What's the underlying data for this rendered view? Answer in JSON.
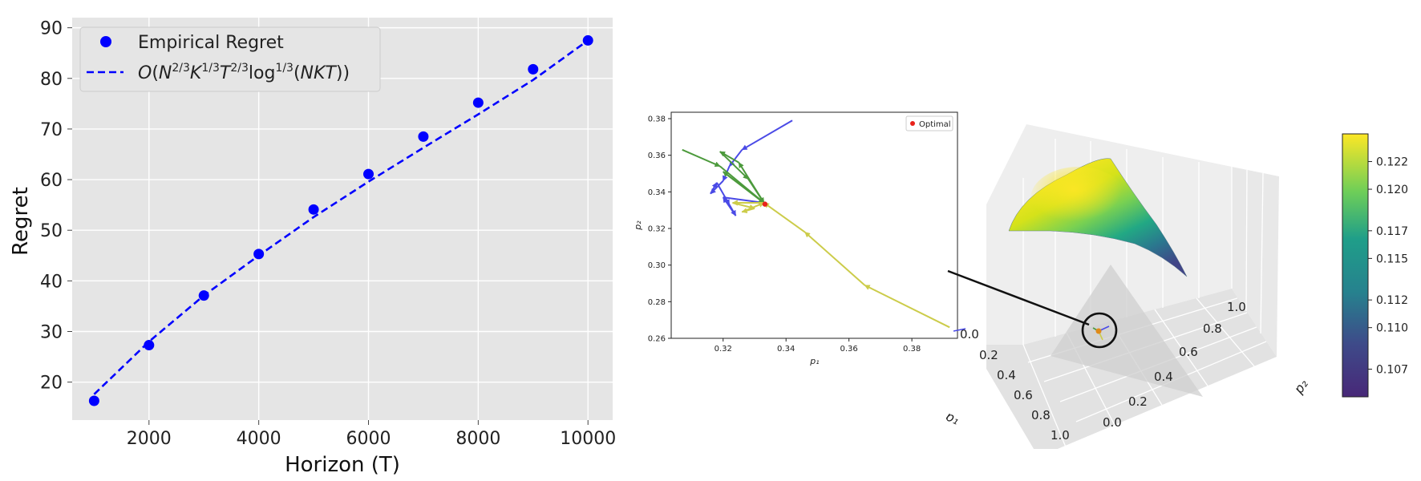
{
  "panels": {
    "left": {
      "xlabel": "Horizon (T)",
      "ylabel": "Regret"
    },
    "inset": {
      "xlabel": "p₁",
      "ylabel": "p₂"
    },
    "surface3d": {
      "xlabel": "p₁",
      "ylabel": "p₂"
    },
    "colorbar": {
      "ticks": [
        "0.107",
        "0.110",
        "0.112",
        "0.115",
        "0.117",
        "0.120",
        "0.122"
      ]
    }
  },
  "colors": {
    "plot_bg": "#e5e5e5",
    "blue": "#0000ff",
    "traj_blue": "#4a4ae6",
    "traj_green": "#4c9a3c",
    "traj_yellow": "#cccc4a",
    "optimal": "#e8221a"
  },
  "chart_data": [
    {
      "type": "scatter",
      "title": "",
      "xlabel": "Horizon (T)",
      "ylabel": "Regret",
      "xlim": [
        600,
        10450
      ],
      "ylim": [
        12.5,
        92
      ],
      "xticks": [
        2000,
        4000,
        6000,
        8000,
        10000
      ],
      "yticks": [
        20,
        30,
        40,
        50,
        60,
        70,
        80,
        90
      ],
      "grid": true,
      "legend_position": "top-left",
      "series": [
        {
          "name": "Empirical Regret",
          "style": "markers",
          "x": [
            1000,
            2000,
            3000,
            4000,
            5000,
            6000,
            7000,
            8000,
            9000,
            10000
          ],
          "y": [
            16.3,
            27.3,
            37.1,
            45.3,
            54.1,
            61.1,
            68.5,
            75.2,
            81.8,
            87.5
          ]
        },
        {
          "name": "O(N^{2/3} K^{1/3} T^{2/3} log^{1/3}(NKT))",
          "style": "dashed-line",
          "x": [
            1000,
            2000,
            3000,
            4000,
            5000,
            6000,
            7000,
            8000,
            9000,
            10000
          ],
          "y": [
            17.6,
            28.0,
            37.1,
            45.0,
            52.6,
            59.6,
            66.3,
            72.9,
            79.7,
            87.5
          ]
        }
      ]
    },
    {
      "type": "line",
      "title": "",
      "xlabel": "p₁",
      "ylabel": "p₂",
      "xlim": [
        0.3035,
        0.3945
      ],
      "ylim": [
        0.26,
        0.3835
      ],
      "xticks": [
        "0.32",
        "0.34",
        "0.36",
        "0.38"
      ],
      "yticks": [
        "0.26",
        "0.28",
        "0.30",
        "0.32",
        "0.34",
        "0.36",
        "0.38"
      ],
      "grid": false,
      "legend_position": "top-right",
      "series": [
        {
          "color": "blue",
          "points": [
            [
              0.342,
              0.379
            ],
            [
              0.326,
              0.363
            ],
            [
              0.322,
              0.354
            ],
            [
              0.32,
              0.346
            ],
            [
              0.316,
              0.339
            ],
            [
              0.318,
              0.345
            ],
            [
              0.322,
              0.333
            ],
            [
              0.324,
              0.327
            ],
            [
              0.32,
              0.337
            ],
            [
              0.333,
              0.334
            ]
          ]
        },
        {
          "color": "green",
          "points": [
            [
              0.307,
              0.363
            ],
            [
              0.319,
              0.354
            ],
            [
              0.333,
              0.334
            ],
            [
              0.325,
              0.356
            ],
            [
              0.319,
              0.362
            ],
            [
              0.328,
              0.347
            ],
            [
              0.333,
              0.334
            ],
            [
              0.32,
              0.351
            ],
            [
              0.333,
              0.334
            ]
          ]
        },
        {
          "color": "yellow",
          "points": [
            [
              0.392,
              0.266
            ],
            [
              0.365,
              0.289
            ],
            [
              0.346,
              0.318
            ],
            [
              0.333,
              0.334
            ],
            [
              0.323,
              0.334
            ],
            [
              0.33,
              0.331
            ],
            [
              0.326,
              0.329
            ],
            [
              0.333,
              0.334
            ]
          ]
        },
        {
          "name": "Optimal",
          "color": "optimal",
          "marker": "point",
          "points": [
            [
              0.3333,
              0.3333
            ]
          ]
        }
      ]
    },
    {
      "type": "surface3d",
      "title": "",
      "xlabel": "p₁",
      "ylabel": "p₂",
      "xticks": [
        "0.0",
        "0.2",
        "0.4",
        "0.6",
        "0.8",
        "1.0"
      ],
      "yticks": [
        "0.0",
        "0.2",
        "0.4",
        "0.6",
        "0.8",
        "1.0"
      ],
      "colormap": "viridis",
      "colorbar_range": [
        0.105,
        0.124
      ]
    }
  ]
}
